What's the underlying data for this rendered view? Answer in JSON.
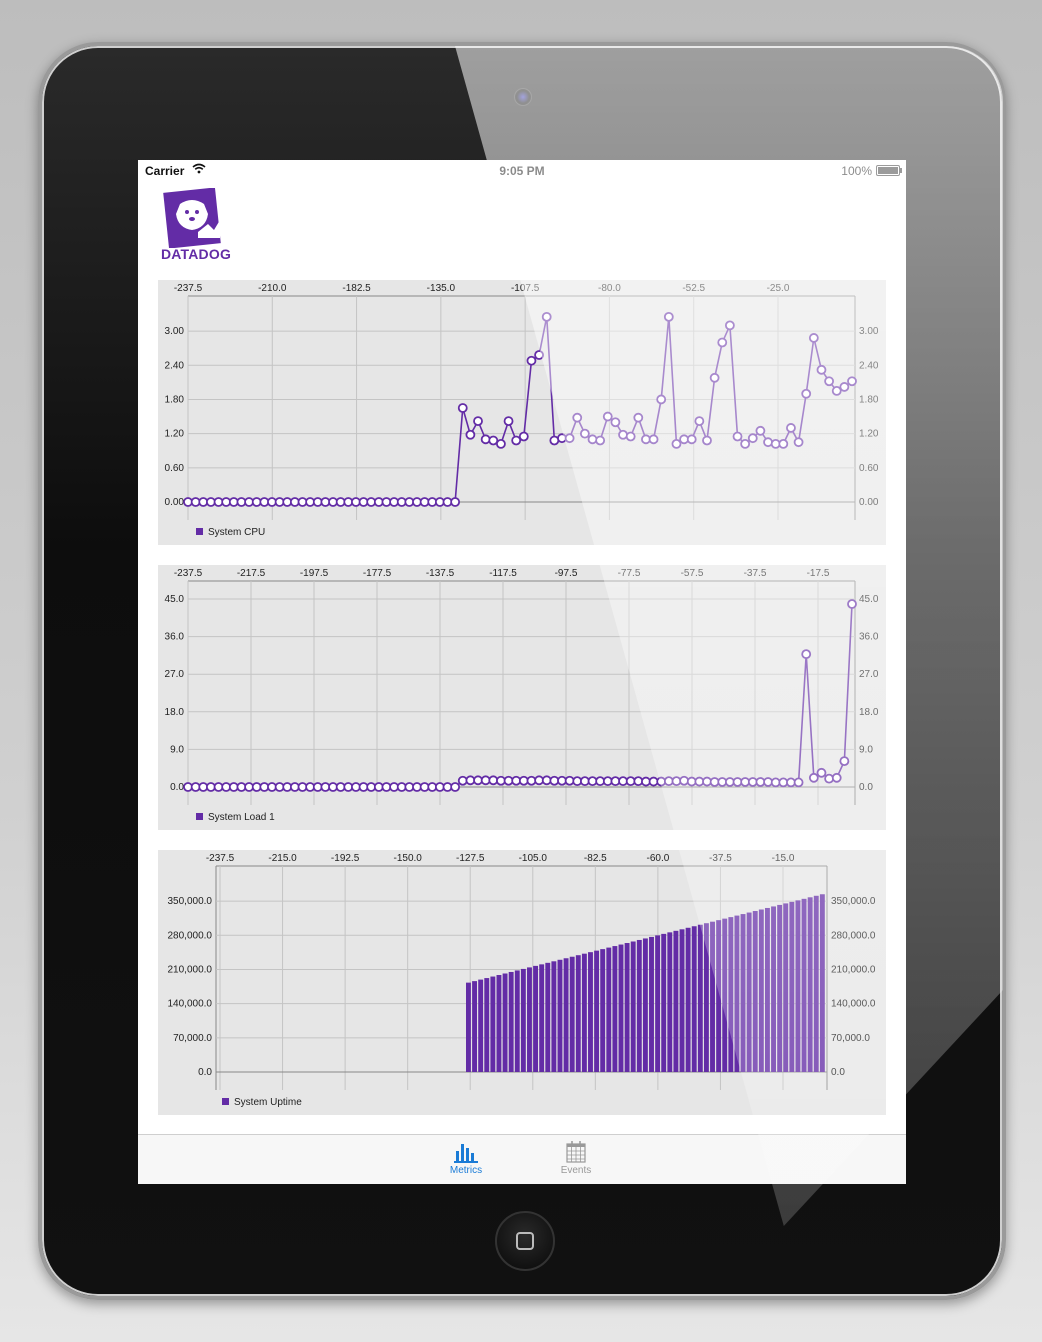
{
  "status_bar": {
    "carrier": "Carrier",
    "time": "9:05 PM",
    "battery": "100%"
  },
  "app": {
    "logo_text": "DATADOG"
  },
  "colors": {
    "accent": "#632ca6",
    "tab_active": "#1a7bd6",
    "tab_inactive": "#999999",
    "chart_bg": "#e6e6e6"
  },
  "tabs": [
    {
      "label": "Metrics",
      "icon": "bar-chart-icon",
      "active": true
    },
    {
      "label": "Events",
      "icon": "calendar-icon",
      "active": false
    }
  ],
  "chart_data": [
    {
      "type": "line",
      "x_tick_labels": [
        "-237.5",
        "-210.0",
        "-182.5",
        "-135.0",
        "-107.5",
        "-80.0",
        "-52.5",
        "-25.0"
      ],
      "y_tick_labels": [
        "0.00",
        "0.60",
        "1.20",
        "1.80",
        "2.40",
        "3.00"
      ],
      "ylim": [
        0,
        3.3
      ],
      "series": [
        {
          "name": "System CPU",
          "values": [
            0,
            0,
            0,
            0,
            0,
            0,
            0,
            0,
            0,
            0,
            0,
            0,
            0,
            0,
            0,
            0,
            0,
            0,
            0,
            0,
            0,
            0,
            0,
            0,
            0,
            0,
            0,
            0,
            0,
            0,
            0,
            0,
            0,
            0,
            0,
            0,
            1.65,
            1.18,
            1.42,
            1.1,
            1.08,
            1.02,
            1.42,
            1.08,
            1.15,
            2.48,
            2.58,
            3.25,
            1.08,
            1.12,
            1.12,
            1.48,
            1.2,
            1.1,
            1.08,
            1.5,
            1.4,
            1.18,
            1.15,
            1.48,
            1.1,
            1.1,
            1.8,
            3.25,
            1.02,
            1.1,
            1.1,
            1.42,
            1.08,
            2.18,
            2.8,
            3.1,
            1.15,
            1.02,
            1.12,
            1.25,
            1.05,
            1.02,
            1.02,
            1.3,
            1.05,
            1.9,
            2.88,
            2.32,
            2.12,
            1.95,
            2.02,
            2.12
          ]
        }
      ]
    },
    {
      "type": "line",
      "x_tick_labels": [
        "-237.5",
        "-217.5",
        "-197.5",
        "-177.5",
        "-137.5",
        "-117.5",
        "-97.5",
        "-77.5",
        "-57.5",
        "-37.5",
        "-17.5"
      ],
      "y_tick_labels": [
        "0.0",
        "9.0",
        "18.0",
        "27.0",
        "36.0",
        "45.0"
      ],
      "ylim": [
        0,
        45
      ],
      "series": [
        {
          "name": "System Load 1",
          "values": [
            0,
            0,
            0,
            0,
            0,
            0,
            0,
            0,
            0,
            0,
            0,
            0,
            0,
            0,
            0,
            0,
            0,
            0,
            0,
            0,
            0,
            0,
            0,
            0,
            0,
            0,
            0,
            0,
            0,
            0,
            0,
            0,
            0,
            0,
            0,
            0,
            1.5,
            1.6,
            1.6,
            1.6,
            1.6,
            1.5,
            1.5,
            1.5,
            1.5,
            1.5,
            1.6,
            1.6,
            1.5,
            1.5,
            1.5,
            1.4,
            1.4,
            1.4,
            1.4,
            1.4,
            1.4,
            1.4,
            1.4,
            1.4,
            1.3,
            1.3,
            1.3,
            1.4,
            1.4,
            1.5,
            1.3,
            1.3,
            1.3,
            1.2,
            1.2,
            1.2,
            1.2,
            1.2,
            1.2,
            1.2,
            1.2,
            1.1,
            1.1,
            1.1,
            1.1,
            31.8,
            2.2,
            3.4,
            2.0,
            2.2,
            6.2,
            43.8
          ]
        }
      ]
    },
    {
      "type": "bar",
      "x_tick_labels": [
        "-237.5",
        "-215.0",
        "-192.5",
        "-150.0",
        "-127.5",
        "-105.0",
        "-82.5",
        "-60.0",
        "-37.5",
        "-15.0"
      ],
      "y_tick_labels": [
        "0.0",
        "70,000.0",
        "140,000.0",
        "210,000.0",
        "280,000.0",
        "350,000.0"
      ],
      "ylim": [
        0,
        385000
      ],
      "series": [
        {
          "name": "System Uptime",
          "start": 183000,
          "end": 364000,
          "count": 59
        }
      ]
    }
  ]
}
